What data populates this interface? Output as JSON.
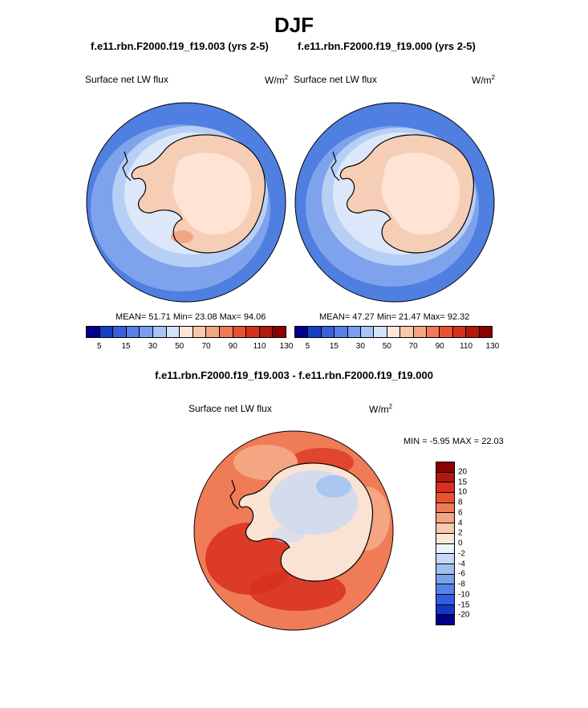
{
  "figure": {
    "season": "DJF",
    "case_a_title": "f.e11.rbn.F2000.f19_f19.003 (yrs 2-5)",
    "case_b_title": "f.e11.rbn.F2000.f19_f19.000 (yrs 2-5)",
    "diff_title": "f.e11.rbn.F2000.f19_f19.003 - f.e11.rbn.F2000.f19_f19.000"
  },
  "panel_a": {
    "variable": "Surface net LW flux",
    "units": "W/m",
    "units_exp": "2",
    "stats": "MEAN=  51.71  Min=  23.08  Max=  94.06"
  },
  "panel_b": {
    "variable": "Surface net LW flux",
    "units": "W/m",
    "units_exp": "2",
    "stats": "MEAN=  47.27  Min=  21.47  Max=  92.32"
  },
  "panel_diff": {
    "variable": "Surface net LW flux",
    "units": "W/m",
    "units_exp": "2",
    "stats": "MIN =  -5.95 MAX =  22.03"
  },
  "abs_colorbar": {
    "colors": [
      "#00008b",
      "#1a3fc7",
      "#3a5fd9",
      "#5a7fe6",
      "#7b9cf0",
      "#a8c4f5",
      "#d3e3f8",
      "#fde6d8",
      "#f9c9ad",
      "#f4a582",
      "#ef7b57",
      "#e8532e",
      "#d7301f",
      "#b2180d",
      "#8b0000"
    ],
    "labels": [
      "5",
      "15",
      "30",
      "50",
      "70",
      "90",
      "110",
      "130"
    ]
  },
  "diff_colorbar": {
    "colors": [
      "#8b0000",
      "#b2180d",
      "#d7301f",
      "#e8532e",
      "#ef7b57",
      "#f4a582",
      "#f9c9ad",
      "#fde6d8",
      "#eef3fb",
      "#c6d8f5",
      "#9fbff0",
      "#7aa2eb",
      "#5583e6",
      "#2f5fe0",
      "#1a34c4",
      "#00008b"
    ],
    "labels": [
      "20",
      "15",
      "10",
      "8",
      "6",
      "4",
      "2",
      "0",
      "-2",
      "-4",
      "-6",
      "-8",
      "-10",
      "-15",
      "-20"
    ]
  },
  "map_colors": {
    "ocean_outer": "#4f7fe0",
    "ocean_mid": "#7ea3ec",
    "ocean_inner": "#b8cff5",
    "ice_edge": "#dce8f9",
    "continent": "#f6cdb5",
    "continent_light": "#fde4d4",
    "diff_ocean": "#ef7b57",
    "diff_ocean_dark": "#d7301f",
    "diff_ocean_light": "#f4a582",
    "diff_continent": "#fbe3d3",
    "diff_continent_blue": "#c6d8f5"
  }
}
